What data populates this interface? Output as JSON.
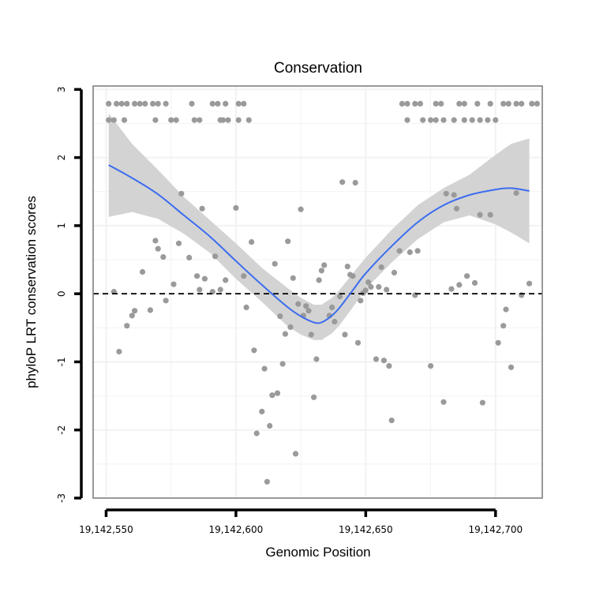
{
  "chart_data": {
    "type": "scatter",
    "title": "Conservation",
    "xlabel": "Genomic Position",
    "ylabel": "phyloP LRT conservation scores",
    "xlim": [
      19142545,
      19142718
    ],
    "ylim": [
      -3.0,
      3.05
    ],
    "x_ticks": [
      19142550,
      19142600,
      19142650,
      19142700
    ],
    "x_tick_labels": [
      "19,142,550",
      "19,142,600",
      "19,142,650",
      "19,142,700"
    ],
    "y_ticks": [
      -3,
      -2,
      -1,
      0,
      1,
      2,
      3
    ],
    "y_tick_labels": [
      "-3",
      "-2",
      "-1",
      "0",
      "1",
      "2",
      "3"
    ],
    "grid": true,
    "reference_line": 0,
    "colors": {
      "points": "#9a9a9a",
      "smooth": "#3b6cf0",
      "ribbon": "#d3d3d3",
      "frame": "#808080",
      "grid": "#f2f2f2"
    },
    "points": [
      [
        19142551,
        2.79
      ],
      [
        19142554,
        2.79
      ],
      [
        19142556,
        2.79
      ],
      [
        19142558,
        2.79
      ],
      [
        19142561,
        2.79
      ],
      [
        19142563,
        2.79
      ],
      [
        19142565,
        2.79
      ],
      [
        19142568,
        2.79
      ],
      [
        19142570,
        2.79
      ],
      [
        19142573,
        2.79
      ],
      [
        19142583,
        2.79
      ],
      [
        19142591,
        2.79
      ],
      [
        19142593,
        2.79
      ],
      [
        19142596,
        2.79
      ],
      [
        19142601,
        2.79
      ],
      [
        19142603,
        2.79
      ],
      [
        19142551,
        2.55
      ],
      [
        19142553,
        2.55
      ],
      [
        19142557,
        2.55
      ],
      [
        19142569,
        2.55
      ],
      [
        19142575,
        2.55
      ],
      [
        19142577,
        2.55
      ],
      [
        19142584,
        2.55
      ],
      [
        19142586,
        2.55
      ],
      [
        19142594,
        2.55
      ],
      [
        19142595,
        2.55
      ],
      [
        19142597,
        2.55
      ],
      [
        19142601,
        2.55
      ],
      [
        19142605,
        2.55
      ],
      [
        19142664,
        2.79
      ],
      [
        19142666,
        2.79
      ],
      [
        19142669,
        2.79
      ],
      [
        19142671,
        2.79
      ],
      [
        19142677,
        2.79
      ],
      [
        19142679,
        2.79
      ],
      [
        19142686,
        2.79
      ],
      [
        19142688,
        2.79
      ],
      [
        19142693,
        2.79
      ],
      [
        19142698,
        2.79
      ],
      [
        19142703,
        2.79
      ],
      [
        19142705,
        2.79
      ],
      [
        19142708,
        2.79
      ],
      [
        19142710,
        2.79
      ],
      [
        19142714,
        2.79
      ],
      [
        19142716,
        2.79
      ],
      [
        19142666,
        2.55
      ],
      [
        19142672,
        2.55
      ],
      [
        19142675,
        2.55
      ],
      [
        19142677,
        2.55
      ],
      [
        19142680,
        2.55
      ],
      [
        19142684,
        2.55
      ],
      [
        19142688,
        2.55
      ],
      [
        19142691,
        2.55
      ],
      [
        19142694,
        2.55
      ],
      [
        19142697,
        2.55
      ],
      [
        19142700,
        2.55
      ],
      [
        19142553,
        0.03
      ],
      [
        19142555,
        -0.85
      ],
      [
        19142558,
        -0.47
      ],
      [
        19142560,
        -0.32
      ],
      [
        19142561,
        -0.25
      ],
      [
        19142564,
        0.32
      ],
      [
        19142567,
        -0.24
      ],
      [
        19142569,
        0.78
      ],
      [
        19142570,
        0.66
      ],
      [
        19142572,
        0.54
      ],
      [
        19142573,
        -0.1
      ],
      [
        19142576,
        0.14
      ],
      [
        19142578,
        0.74
      ],
      [
        19142579,
        1.47
      ],
      [
        19142582,
        0.53
      ],
      [
        19142585,
        0.26
      ],
      [
        19142586,
        0.06
      ],
      [
        19142587,
        1.25
      ],
      [
        19142588,
        0.22
      ],
      [
        19142591,
        0.03
      ],
      [
        19142592,
        0.55
      ],
      [
        19142594,
        0.06
      ],
      [
        19142596,
        0.2
      ],
      [
        19142600,
        1.26
      ],
      [
        19142603,
        0.26
      ],
      [
        19142604,
        -0.2
      ],
      [
        19142606,
        0.76
      ],
      [
        19142607,
        -0.83
      ],
      [
        19142608,
        -2.05
      ],
      [
        19142610,
        -1.73
      ],
      [
        19142611,
        -1.1
      ],
      [
        19142612,
        -2.76
      ],
      [
        19142613,
        -1.94
      ],
      [
        19142614,
        -1.49
      ],
      [
        19142615,
        0.44
      ],
      [
        19142616,
        -1.46
      ],
      [
        19142617,
        -0.33
      ],
      [
        19142618,
        -1.03
      ],
      [
        19142619,
        -0.59
      ],
      [
        19142620,
        0.77
      ],
      [
        19142621,
        -0.49
      ],
      [
        19142622,
        0.23
      ],
      [
        19142623,
        -2.35
      ],
      [
        19142624,
        -0.15
      ],
      [
        19142625,
        1.24
      ],
      [
        19142626,
        -0.32
      ],
      [
        19142627,
        -0.18
      ],
      [
        19142628,
        -0.25
      ],
      [
        19142629,
        -0.6
      ],
      [
        19142630,
        -1.52
      ],
      [
        19142631,
        -0.96
      ],
      [
        19142632,
        0.2
      ],
      [
        19142633,
        0.34
      ],
      [
        19142634,
        0.42
      ],
      [
        19142636,
        -0.32
      ],
      [
        19142637,
        -0.2
      ],
      [
        19142638,
        -0.41
      ],
      [
        19142640,
        -0.04
      ],
      [
        19142641,
        1.64
      ],
      [
        19142642,
        -0.6
      ],
      [
        19142643,
        0.4
      ],
      [
        19142644,
        0.28
      ],
      [
        19142645,
        0.26
      ],
      [
        19142646,
        1.63
      ],
      [
        19142647,
        -0.72
      ],
      [
        19142648,
        -0.1
      ],
      [
        19142649,
        0.01
      ],
      [
        19142650,
        0.05
      ],
      [
        19142651,
        0.17
      ],
      [
        19142652,
        0.1
      ],
      [
        19142654,
        -0.96
      ],
      [
        19142655,
        0.1
      ],
      [
        19142656,
        0.39
      ],
      [
        19142657,
        -0.98
      ],
      [
        19142658,
        0.06
      ],
      [
        19142659,
        -1.06
      ],
      [
        19142660,
        -1.86
      ],
      [
        19142661,
        0.31
      ],
      [
        19142663,
        0.63
      ],
      [
        19142667,
        0.61
      ],
      [
        19142669,
        -0.02
      ],
      [
        19142670,
        0.63
      ],
      [
        19142675,
        -1.06
      ],
      [
        19142680,
        -1.59
      ],
      [
        19142681,
        1.47
      ],
      [
        19142683,
        0.07
      ],
      [
        19142684,
        1.45
      ],
      [
        19142685,
        1.25
      ],
      [
        19142686,
        0.13
      ],
      [
        19142689,
        0.26
      ],
      [
        19142692,
        0.16
      ],
      [
        19142694,
        1.16
      ],
      [
        19142695,
        -1.6
      ],
      [
        19142698,
        1.16
      ],
      [
        19142701,
        -0.72
      ],
      [
        19142703,
        -0.47
      ],
      [
        19142704,
        -0.23
      ],
      [
        19142706,
        -1.08
      ],
      [
        19142708,
        1.48
      ],
      [
        19142710,
        -0.02
      ],
      [
        19142713,
        0.15
      ]
    ],
    "smooth": {
      "x": [
        19142551,
        19142560,
        19142570,
        19142580,
        19142590,
        19142600,
        19142610,
        19142620,
        19142625,
        19142630,
        19142633,
        19142637,
        19142640,
        19142645,
        19142650,
        19142660,
        19142670,
        19142680,
        19142690,
        19142700,
        19142706,
        19142713
      ],
      "y": [
        1.89,
        1.7,
        1.46,
        1.15,
        0.84,
        0.48,
        0.13,
        -0.2,
        -0.33,
        -0.42,
        -0.42,
        -0.32,
        -0.2,
        0.05,
        0.3,
        0.7,
        1.05,
        1.3,
        1.45,
        1.53,
        1.55,
        1.51
      ],
      "lower": [
        1.13,
        1.2,
        1.1,
        0.88,
        0.6,
        0.22,
        -0.12,
        -0.48,
        -0.6,
        -0.68,
        -0.68,
        -0.58,
        -0.46,
        -0.2,
        0.07,
        0.46,
        0.8,
        1.05,
        1.15,
        1.02,
        0.9,
        0.74
      ],
      "upper": [
        2.65,
        2.2,
        1.82,
        1.42,
        1.08,
        0.74,
        0.38,
        0.08,
        -0.06,
        -0.16,
        -0.16,
        -0.06,
        0.06,
        0.3,
        0.53,
        0.94,
        1.3,
        1.55,
        1.75,
        2.04,
        2.2,
        2.28
      ]
    }
  }
}
